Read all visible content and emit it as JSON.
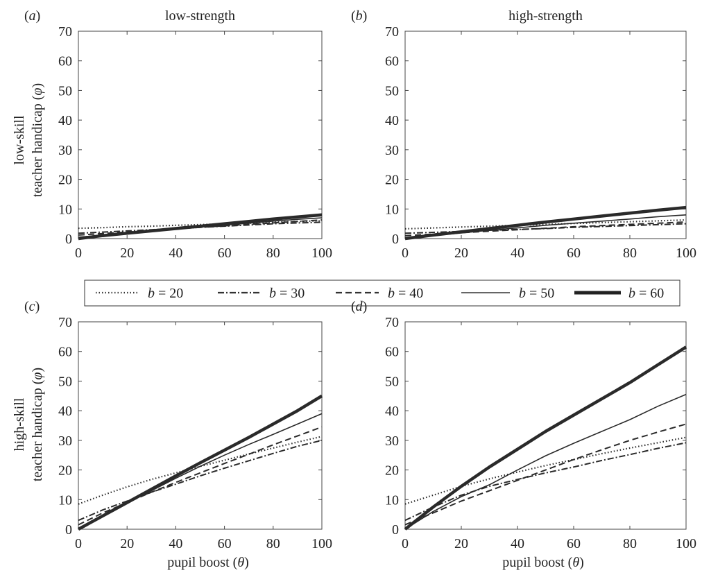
{
  "legend": {
    "entries": [
      {
        "prefix": "b",
        "eq": " = ",
        "value": "20",
        "style": "dotted"
      },
      {
        "prefix": "b",
        "eq": " = ",
        "value": "30",
        "style": "dashdot"
      },
      {
        "prefix": "b",
        "eq": " = ",
        "value": "40",
        "style": "dashed"
      },
      {
        "prefix": "b",
        "eq": " = ",
        "value": "50",
        "style": "thin"
      },
      {
        "prefix": "b",
        "eq": " = ",
        "value": "60",
        "style": "thick"
      }
    ]
  },
  "row_labels": [
    {
      "line1": "low-skill",
      "line2_pre": "teacher handicap (",
      "line2_sym": "φ",
      "line2_post": ")"
    },
    {
      "line1": "high-skill",
      "line2_pre": "teacher handicap (",
      "line2_sym": "φ",
      "line2_post": ")"
    }
  ],
  "x_label": {
    "pre": "pupil boost (",
    "sym": "θ",
    "post": ")"
  },
  "chart_data": [
    {
      "type": "line",
      "panel": "(a)",
      "title": "low-strength",
      "x": [
        0,
        10,
        20,
        30,
        40,
        50,
        60,
        70,
        80,
        90,
        100
      ],
      "xlim": [
        0,
        100
      ],
      "ylim": [
        0,
        70
      ],
      "xticks": [
        0,
        20,
        40,
        60,
        80,
        100
      ],
      "yticks": [
        0,
        10,
        20,
        30,
        40,
        50,
        60,
        70
      ],
      "grid": false,
      "series": [
        {
          "name": "b = 20",
          "values": [
            3.5,
            3.7,
            4.0,
            4.2,
            4.5,
            4.7,
            5.0,
            5.2,
            5.5,
            5.8,
            6.0
          ]
        },
        {
          "name": "b = 30",
          "values": [
            1.8,
            2.2,
            2.6,
            3.0,
            3.4,
            3.8,
            4.2,
            4.6,
            5.0,
            5.3,
            5.5
          ]
        },
        {
          "name": "b = 40",
          "values": [
            1.2,
            1.7,
            2.2,
            2.8,
            3.3,
            3.8,
            4.3,
            4.8,
            5.3,
            5.8,
            6.3
          ]
        },
        {
          "name": "b = 50",
          "values": [
            0.5,
            1.2,
            1.9,
            2.6,
            3.3,
            4.0,
            4.6,
            5.2,
            5.9,
            6.5,
            7.0
          ]
        },
        {
          "name": "b = 60",
          "values": [
            0.0,
            1.0,
            1.8,
            2.6,
            3.4,
            4.2,
            5.0,
            5.8,
            6.6,
            7.3,
            8.0
          ]
        }
      ]
    },
    {
      "type": "line",
      "panel": "(b)",
      "title": "high-strength",
      "x": [
        0,
        10,
        20,
        30,
        40,
        50,
        60,
        70,
        80,
        90,
        100
      ],
      "xlim": [
        0,
        100
      ],
      "ylim": [
        0,
        70
      ],
      "xticks": [
        0,
        20,
        40,
        60,
        80,
        100
      ],
      "yticks": [
        0,
        10,
        20,
        30,
        40,
        50,
        60,
        70
      ],
      "grid": false,
      "series": [
        {
          "name": "b = 20",
          "values": [
            3.3,
            3.6,
            3.9,
            4.2,
            4.5,
            4.8,
            5.1,
            5.4,
            5.7,
            6.0,
            6.3
          ]
        },
        {
          "name": "b = 30",
          "values": [
            1.8,
            2.1,
            2.4,
            2.8,
            3.1,
            3.4,
            3.8,
            4.1,
            4.4,
            4.7,
            5.0
          ]
        },
        {
          "name": "b = 40",
          "values": [
            1.0,
            1.5,
            2.0,
            2.5,
            3.0,
            3.5,
            4.0,
            4.4,
            4.8,
            5.2,
            5.6
          ]
        },
        {
          "name": "b = 50",
          "values": [
            0.2,
            1.0,
            1.9,
            2.8,
            3.6,
            4.5,
            5.2,
            5.9,
            6.6,
            7.4,
            8.0
          ]
        },
        {
          "name": "b = 60",
          "values": [
            0.0,
            1.2,
            2.3,
            3.4,
            4.5,
            5.6,
            6.6,
            7.6,
            8.6,
            9.6,
            10.5
          ]
        }
      ]
    },
    {
      "type": "line",
      "panel": "(c)",
      "title": "",
      "x": [
        0,
        10,
        20,
        30,
        40,
        50,
        60,
        70,
        80,
        90,
        100
      ],
      "xlim": [
        0,
        100
      ],
      "ylim": [
        0,
        70
      ],
      "xticks": [
        0,
        20,
        40,
        60,
        80,
        100
      ],
      "yticks": [
        0,
        10,
        20,
        30,
        40,
        50,
        60,
        70
      ],
      "grid": false,
      "series": [
        {
          "name": "b = 20",
          "values": [
            8.5,
            11.5,
            14.3,
            16.8,
            19.0,
            21.2,
            23.3,
            25.4,
            27.4,
            29.4,
            31.3
          ]
        },
        {
          "name": "b = 30",
          "values": [
            3.0,
            6.5,
            9.5,
            12.5,
            15.2,
            18.0,
            20.6,
            23.1,
            25.6,
            28.0,
            30.0
          ]
        },
        {
          "name": "b = 40",
          "values": [
            1.5,
            5.5,
            9.0,
            12.5,
            15.8,
            19.0,
            22.2,
            25.3,
            28.5,
            31.5,
            34.5
          ]
        },
        {
          "name": "b = 50",
          "values": [
            0.0,
            4.5,
            8.8,
            13.0,
            17.2,
            21.2,
            25.0,
            28.6,
            32.0,
            35.5,
            39.0
          ]
        },
        {
          "name": "b = 60",
          "values": [
            0.0,
            4.5,
            9.0,
            13.5,
            18.0,
            22.4,
            26.7,
            31.0,
            35.5,
            40.0,
            45.0
          ]
        }
      ]
    },
    {
      "type": "line",
      "panel": "(d)",
      "title": "",
      "x": [
        0,
        10,
        20,
        30,
        40,
        50,
        60,
        70,
        80,
        90,
        100
      ],
      "xlim": [
        0,
        100
      ],
      "ylim": [
        0,
        70
      ],
      "xticks": [
        0,
        20,
        40,
        60,
        80,
        100
      ],
      "yticks": [
        0,
        10,
        20,
        30,
        40,
        50,
        60,
        70
      ],
      "grid": false,
      "series": [
        {
          "name": "b = 20",
          "values": [
            8.5,
            11.5,
            14.5,
            17.0,
            19.3,
            21.5,
            23.5,
            25.5,
            27.4,
            29.2,
            31.0
          ]
        },
        {
          "name": "b = 30",
          "values": [
            3.0,
            7.5,
            11.5,
            14.5,
            16.8,
            19.0,
            21.0,
            23.2,
            25.2,
            27.3,
            29.2
          ]
        },
        {
          "name": "b = 40",
          "values": [
            1.5,
            5.5,
            9.5,
            13.0,
            16.5,
            20.0,
            23.5,
            26.8,
            30.0,
            32.8,
            35.5
          ]
        },
        {
          "name": "b = 50",
          "values": [
            0.0,
            6.0,
            11.0,
            15.0,
            20.0,
            24.8,
            29.0,
            33.0,
            37.0,
            41.5,
            45.5
          ]
        },
        {
          "name": "b = 60",
          "values": [
            0.0,
            7.5,
            14.5,
            21.0,
            27.0,
            33.0,
            38.5,
            44.0,
            49.5,
            55.5,
            61.5
          ]
        }
      ]
    }
  ]
}
